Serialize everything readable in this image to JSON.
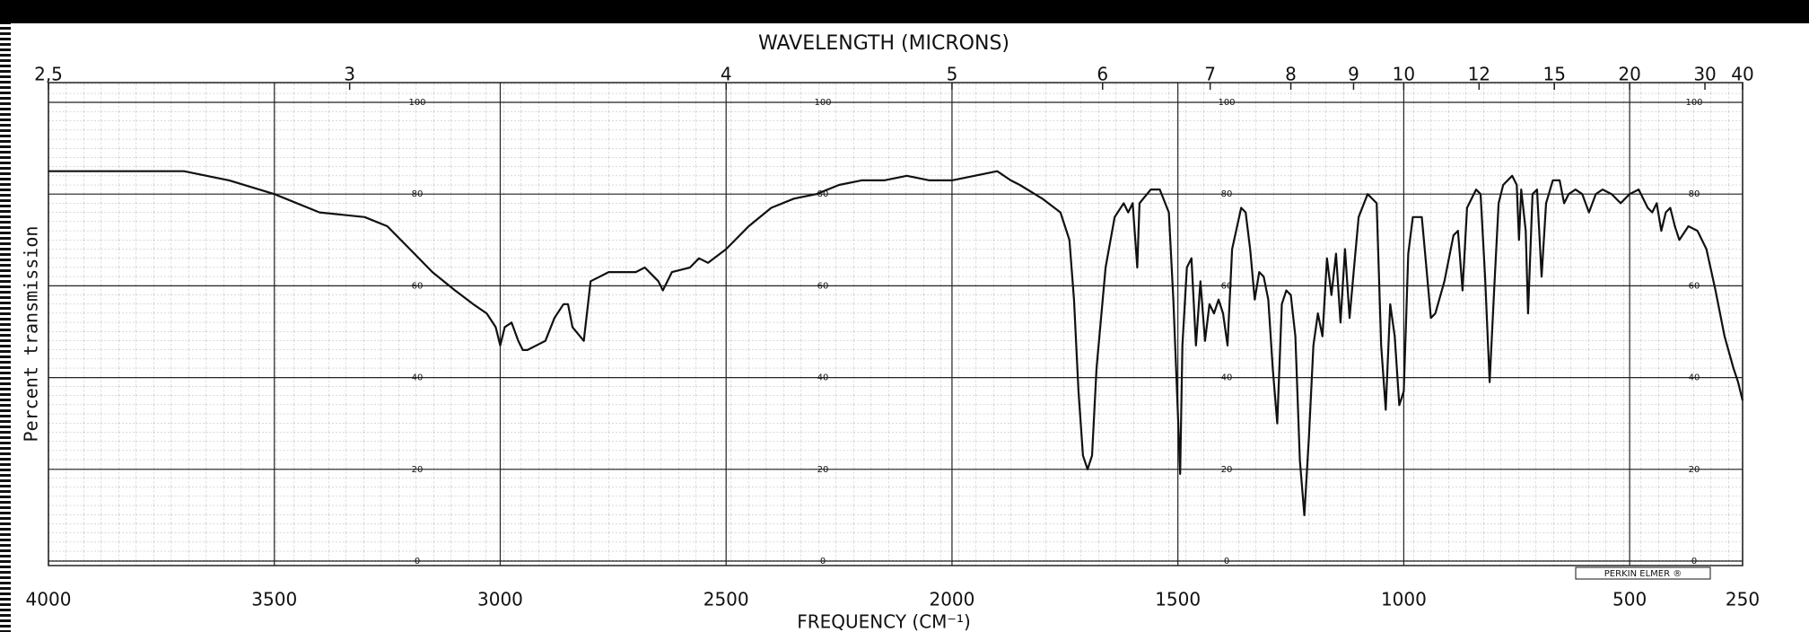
{
  "chart_data": {
    "type": "line",
    "title": "WAVELENGTH (MICRONS)",
    "x_label": "FREQUENCY (CM⁻¹)",
    "y_label": "Percent transmission",
    "annotation": "PERKIN ELMER ®",
    "color": "#111111",
    "grid": true,
    "xlim": [
      4000,
      250
    ],
    "ylim": [
      0,
      100
    ],
    "xticks": [
      4000,
      3500,
      3000,
      2500,
      2000,
      1500,
      1000,
      500,
      250
    ],
    "yticks": [
      0,
      20,
      40,
      60,
      80,
      100
    ],
    "x2ticks": [
      {
        "value": 2.5,
        "label": "2,5"
      },
      3,
      4,
      5,
      6,
      7,
      8,
      9,
      10,
      12,
      15,
      20,
      30,
      40
    ],
    "x": [
      4000,
      3800,
      3700,
      3600,
      3500,
      3400,
      3300,
      3250,
      3200,
      3150,
      3100,
      3060,
      3030,
      3010,
      3000,
      2990,
      2975,
      2960,
      2950,
      2940,
      2920,
      2900,
      2880,
      2860,
      2850,
      2840,
      2815,
      2800,
      2760,
      2700,
      2680,
      2650,
      2640,
      2620,
      2580,
      2560,
      2540,
      2500,
      2450,
      2400,
      2350,
      2300,
      2250,
      2200,
      2150,
      2100,
      2050,
      2000,
      1950,
      1900,
      1870,
      1850,
      1800,
      1760,
      1740,
      1730,
      1720,
      1710,
      1700,
      1690,
      1680,
      1660,
      1640,
      1620,
      1610,
      1600,
      1590,
      1585,
      1560,
      1540,
      1520,
      1510,
      1500,
      1495,
      1490,
      1480,
      1470,
      1460,
      1450,
      1440,
      1430,
      1420,
      1410,
      1400,
      1390,
      1380,
      1360,
      1350,
      1340,
      1330,
      1320,
      1310,
      1300,
      1290,
      1280,
      1270,
      1260,
      1250,
      1240,
      1230,
      1220,
      1210,
      1200,
      1190,
      1180,
      1170,
      1160,
      1150,
      1140,
      1130,
      1120,
      1110,
      1100,
      1080,
      1060,
      1050,
      1040,
      1030,
      1020,
      1010,
      1000,
      990,
      980,
      960,
      950,
      940,
      930,
      910,
      890,
      880,
      870,
      860,
      840,
      830,
      820,
      810,
      800,
      790,
      780,
      760,
      750,
      745,
      740,
      730,
      725,
      715,
      705,
      695,
      685,
      670,
      655,
      645,
      635,
      620,
      605,
      590,
      575,
      560,
      540,
      520,
      500,
      480,
      460,
      450,
      440,
      430,
      420,
      410,
      400,
      390,
      370,
      350,
      330,
      310,
      290,
      270,
      260,
      250
    ],
    "values": [
      85,
      85,
      85,
      83,
      80,
      76,
      75,
      73,
      68,
      63,
      59,
      56,
      54,
      51,
      47,
      51,
      52,
      48,
      46,
      46,
      47,
      48,
      53,
      56,
      56,
      51,
      48,
      61,
      63,
      63,
      64,
      61,
      59,
      63,
      64,
      66,
      65,
      68,
      73,
      77,
      79,
      80,
      82,
      83,
      83,
      84,
      83,
      83,
      84,
      85,
      83,
      82,
      79,
      76,
      70,
      57,
      37,
      23,
      20,
      23,
      42,
      64,
      75,
      78,
      76,
      78,
      64,
      78,
      81,
      81,
      76,
      57,
      32,
      19,
      47,
      64,
      66,
      47,
      61,
      48,
      56,
      54,
      57,
      54,
      47,
      68,
      77,
      76,
      68,
      57,
      63,
      62,
      57,
      42,
      30,
      56,
      59,
      58,
      49,
      22,
      10,
      27,
      47,
      54,
      49,
      66,
      58,
      67,
      52,
      68,
      53,
      64,
      75,
      80,
      78,
      47,
      33,
      56,
      49,
      34,
      37,
      67,
      75,
      75,
      64,
      53,
      54,
      61,
      71,
      72,
      59,
      77,
      81,
      80,
      62,
      39,
      59,
      78,
      82,
      84,
      82,
      70,
      81,
      72,
      54,
      80,
      81,
      62,
      78,
      83,
      83,
      78,
      80,
      81,
      80,
      76,
      80,
      81,
      80,
      78,
      80,
      81,
      77,
      76,
      78,
      72,
      76,
      77,
      73,
      70,
      73,
      72,
      68,
      59,
      49,
      42,
      39,
      35
    ]
  }
}
